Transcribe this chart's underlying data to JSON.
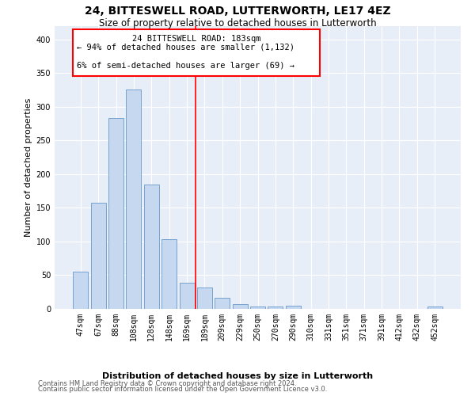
{
  "title": "24, BITTESWELL ROAD, LUTTERWORTH, LE17 4EZ",
  "subtitle": "Size of property relative to detached houses in Lutterworth",
  "xlabel": "Distribution of detached houses by size in Lutterworth",
  "ylabel": "Number of detached properties",
  "bar_color": "#c5d8f0",
  "bar_edge_color": "#6699cc",
  "background_color": "#e8eef8",
  "grid_color": "#ffffff",
  "categories": [
    "47sqm",
    "67sqm",
    "88sqm",
    "108sqm",
    "128sqm",
    "148sqm",
    "169sqm",
    "189sqm",
    "209sqm",
    "229sqm",
    "250sqm",
    "270sqm",
    "290sqm",
    "310sqm",
    "331sqm",
    "351sqm",
    "371sqm",
    "391sqm",
    "412sqm",
    "432sqm",
    "452sqm"
  ],
  "values": [
    55,
    158,
    283,
    325,
    185,
    103,
    39,
    32,
    16,
    7,
    4,
    4,
    5,
    0,
    0,
    0,
    0,
    0,
    0,
    0,
    4
  ],
  "ylim": [
    0,
    420
  ],
  "yticks": [
    0,
    50,
    100,
    150,
    200,
    250,
    300,
    350,
    400
  ],
  "property_label": "24 BITTESWELL ROAD: 183sqm",
  "annotation_line1": "← 94% of detached houses are smaller (1,132)",
  "annotation_line2": "6% of semi-detached houses are larger (69) →",
  "vline_position": 6.5,
  "footer_line1": "Contains HM Land Registry data © Crown copyright and database right 2024.",
  "footer_line2": "Contains public sector information licensed under the Open Government Licence v3.0.",
  "title_fontsize": 10,
  "subtitle_fontsize": 8.5,
  "ylabel_fontsize": 8,
  "tick_fontsize": 7,
  "annotation_fontsize": 7.5,
  "xlabel_fontsize": 8,
  "footer_fontsize": 6
}
